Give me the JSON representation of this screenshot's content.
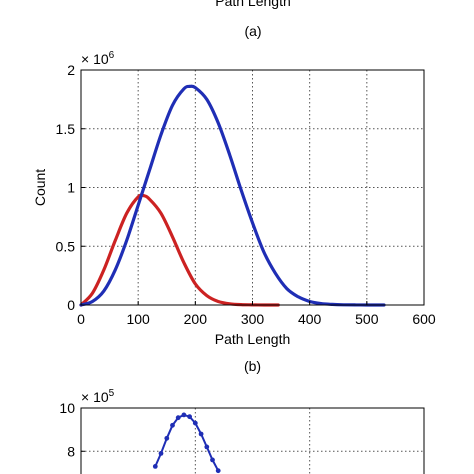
{
  "top_cut": {
    "xlabel": "Path Length",
    "caption": "(a)"
  },
  "chart_data": [
    {
      "type": "line",
      "caption": "(b)",
      "xlabel": "Path Length",
      "ylabel": "Count",
      "y_multiplier": "× 10",
      "y_multiplier_exp": "6",
      "xlim": [
        0,
        600
      ],
      "ylim": [
        0,
        2
      ],
      "xticks": [
        0,
        100,
        200,
        300,
        400,
        500,
        600
      ],
      "yticks": [
        0,
        0.5,
        1,
        1.5,
        2
      ],
      "ytick_labels": [
        "0",
        "0.5",
        "1",
        "1.5",
        "2"
      ],
      "grid": true,
      "series": [
        {
          "color": "#cc2222",
          "x": [
            0,
            20,
            40,
            60,
            80,
            100,
            110,
            120,
            140,
            160,
            180,
            200,
            220,
            240,
            260,
            280,
            300,
            320,
            345
          ],
          "y": [
            0,
            0.1,
            0.3,
            0.55,
            0.78,
            0.92,
            0.93,
            0.9,
            0.78,
            0.58,
            0.36,
            0.18,
            0.08,
            0.03,
            0.01,
            0.003,
            0.001,
            0,
            0
          ]
        },
        {
          "color": "#1f2eb5",
          "x": [
            0,
            20,
            40,
            60,
            80,
            100,
            120,
            140,
            160,
            180,
            190,
            200,
            220,
            240,
            260,
            280,
            300,
            320,
            340,
            360,
            380,
            400,
            420,
            440,
            460,
            480,
            500,
            530
          ],
          "y": [
            0,
            0.03,
            0.12,
            0.3,
            0.55,
            0.85,
            1.15,
            1.45,
            1.7,
            1.84,
            1.86,
            1.85,
            1.75,
            1.55,
            1.28,
            0.98,
            0.7,
            0.45,
            0.27,
            0.14,
            0.07,
            0.03,
            0.012,
            0.005,
            0.002,
            0.001,
            0,
            0
          ]
        }
      ]
    },
    {
      "type": "line",
      "partial": true,
      "y_multiplier": "× 10",
      "y_multiplier_exp": "5",
      "xlim": [
        0,
        600
      ],
      "ylim": [
        7,
        10
      ],
      "yticks": [
        8,
        10
      ],
      "ytick_labels": [
        "8",
        "10"
      ],
      "grid": true,
      "series": [
        {
          "color": "#1f2eb5",
          "marker": "dot",
          "x": [
            130,
            140,
            150,
            160,
            170,
            180,
            190,
            200,
            210,
            220,
            230,
            240
          ],
          "y": [
            7.3,
            7.9,
            8.6,
            9.2,
            9.55,
            9.68,
            9.6,
            9.3,
            8.8,
            8.2,
            7.6,
            7.1
          ]
        }
      ]
    }
  ]
}
